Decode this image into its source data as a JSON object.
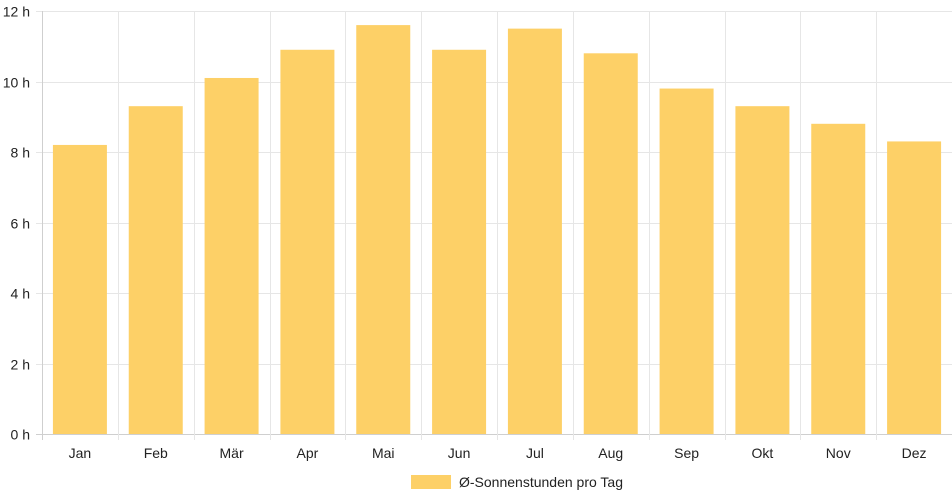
{
  "chart_data": {
    "type": "bar",
    "categories": [
      "Jan",
      "Feb",
      "Mär",
      "Apr",
      "Mai",
      "Jun",
      "Jul",
      "Aug",
      "Sep",
      "Okt",
      "Nov",
      "Dez"
    ],
    "series": [
      {
        "name": "Ø-Sonnenstunden pro Tag",
        "values": [
          8.2,
          9.3,
          10.1,
          10.9,
          11.6,
          10.9,
          11.5,
          10.8,
          9.8,
          9.3,
          8.8,
          8.3
        ],
        "color": "#fdd067"
      }
    ],
    "y_unit_suffix": " h",
    "ylim": [
      0,
      12
    ],
    "y_ticks": [
      0,
      2,
      4,
      6,
      8,
      10,
      12
    ],
    "grid": true,
    "legend": "bottom-center",
    "title": "",
    "xlabel": "",
    "ylabel": ""
  }
}
